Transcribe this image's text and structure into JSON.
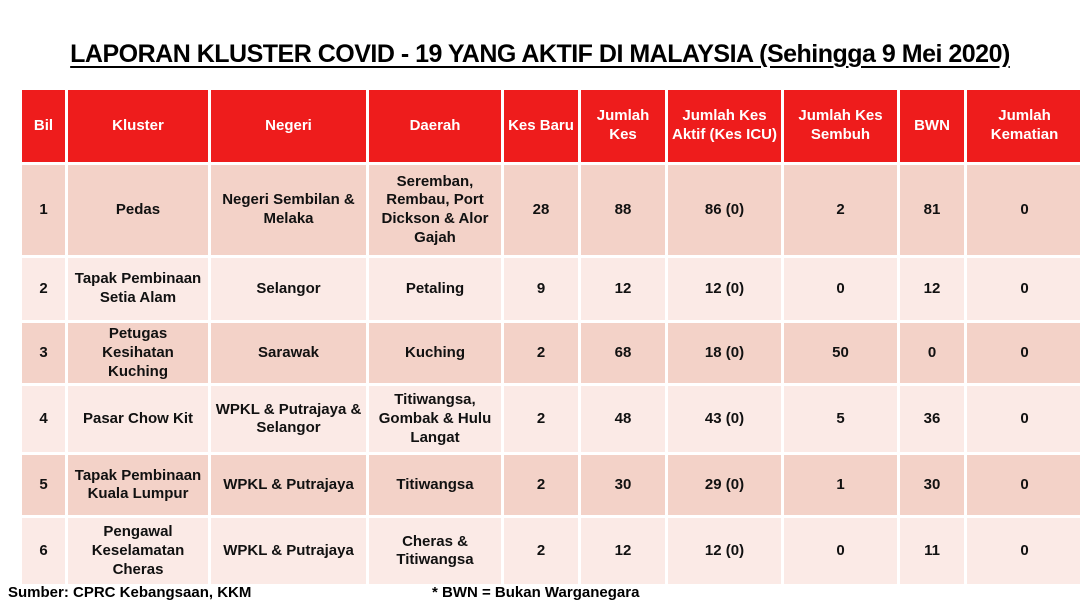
{
  "title": "LAPORAN KLUSTER COVID - 19 YANG AKTIF DI MALAYSIA (Sehingga 9 Mei 2020)",
  "table": {
    "columns": [
      "Bil",
      "Kluster",
      "Negeri",
      "Daerah",
      "Kes Baru",
      "Jumlah Kes",
      "Jumlah Kes Aktif (Kes ICU)",
      "Jumlah Kes Sembuh",
      "BWN",
      "Jumlah Kematian"
    ],
    "rows": [
      [
        "1",
        "Pedas",
        "Negeri Sembilan & Melaka",
        "Seremban, Rembau, Port Dickson & Alor Gajah",
        "28",
        "88",
        "86 (0)",
        "2",
        "81",
        "0"
      ],
      [
        "2",
        "Tapak Pembinaan Setia Alam",
        "Selangor",
        "Petaling",
        "9",
        "12",
        "12 (0)",
        "0",
        "12",
        "0"
      ],
      [
        "3",
        "Petugas Kesihatan Kuching",
        "Sarawak",
        "Kuching",
        "2",
        "68",
        "18 (0)",
        "50",
        "0",
        "0"
      ],
      [
        "4",
        "Pasar Chow Kit",
        "WPKL & Putrajaya & Selangor",
        "Titiwangsa, Gombak & Hulu Langat",
        "2",
        "48",
        "43 (0)",
        "5",
        "36",
        "0"
      ],
      [
        "5",
        "Tapak Pembinaan Kuala Lumpur",
        "WPKL & Putrajaya",
        "Titiwangsa",
        "2",
        "30",
        "29 (0)",
        "1",
        "30",
        "0"
      ],
      [
        "6",
        "Pengawal Keselamatan Cheras",
        "WPKL & Putrajaya",
        "Cheras & Titiwangsa",
        "2",
        "12",
        "12 (0)",
        "0",
        "11",
        "0"
      ]
    ]
  },
  "footer": {
    "source": "Sumber: CPRC Kebangsaan, KKM",
    "note": "* BWN = Bukan Warganegara"
  },
  "colors": {
    "header_bg": "#EE1C1C",
    "header_text": "#FFFFFF",
    "row_odd_bg": "#F3D2C8",
    "row_even_bg": "#FBEAE6",
    "cell_gap": "#FFFFFF",
    "body_text": "#111111"
  }
}
